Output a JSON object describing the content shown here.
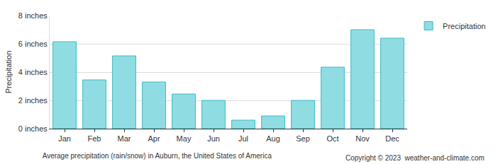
{
  "chart_data": {
    "type": "bar",
    "title": "Average precipitation (rain/snow) in Auburn, the United States of America",
    "annotations": [
      "Copyright © 2023  weather-and-climate.com"
    ],
    "y_label": "Precipitation",
    "categories": [
      "Jan",
      "Feb",
      "Mar",
      "Apr",
      "May",
      "Jun",
      "Jul",
      "Aug",
      "Sep",
      "Oct",
      "Nov",
      "Dec"
    ],
    "series": [
      {
        "name": "Precipitation",
        "color": "#8fdde2",
        "values": [
          6.15,
          3.45,
          5.15,
          3.3,
          2.45,
          2.0,
          0.6,
          0.9,
          2.0,
          4.35,
          7.0,
          6.4
        ]
      }
    ],
    "ylim": [
      0,
      8
    ],
    "yticks": [
      {
        "value": 0,
        "label": "0 inches"
      },
      {
        "value": 2,
        "label": "2 inches"
      },
      {
        "value": 4,
        "label": "4 inches"
      },
      {
        "value": 6,
        "label": "6 inches"
      },
      {
        "value": 8,
        "label": "8 inches"
      }
    ],
    "grid": true,
    "legend": "top-right"
  }
}
